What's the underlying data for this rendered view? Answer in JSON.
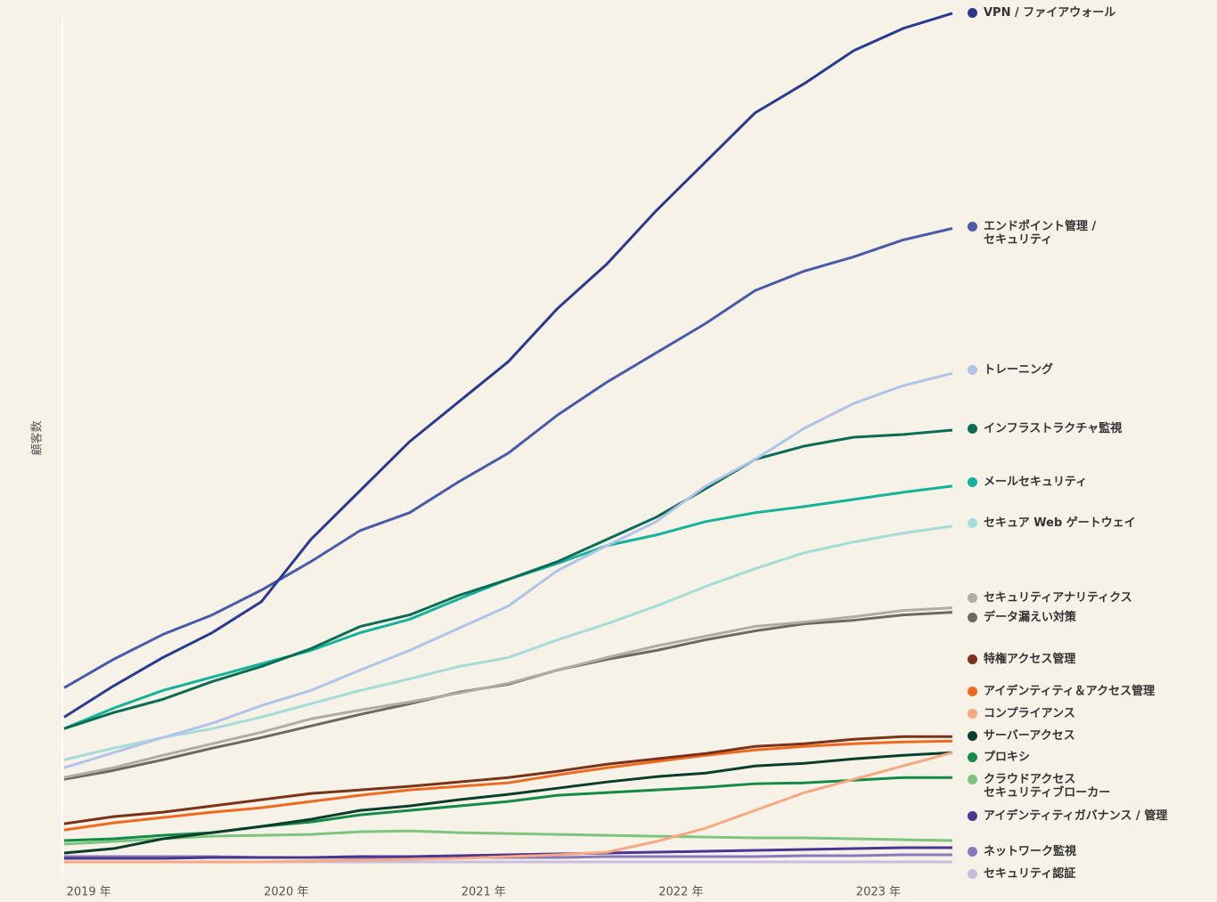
{
  "chart_data": {
    "type": "line",
    "ylabel": "顧客数",
    "x": [
      2018.875,
      2019.125,
      2019.375,
      2019.625,
      2019.875,
      2020.125,
      2020.375,
      2020.625,
      2020.875,
      2021.125,
      2021.375,
      2021.625,
      2021.875,
      2022.125,
      2022.375,
      2022.625,
      2022.875,
      2023.125,
      2023.375
    ],
    "xlim": [
      2018.875,
      2023.375
    ],
    "xticks": [
      {
        "value": 2019,
        "label": "2019 年"
      },
      {
        "value": 2020,
        "label": "2020 年"
      },
      {
        "value": 2021,
        "label": "2021 年"
      },
      {
        "value": 2022,
        "label": "2022 年"
      },
      {
        "value": 2023,
        "label": "2023 年"
      }
    ],
    "ylim": [
      0,
      960
    ],
    "series": [
      {
        "name": "VPN / ファイアウォール",
        "color": "#2b3a8f",
        "values": [
          165,
          200,
          232,
          260,
          295,
          365,
          420,
          475,
          520,
          565,
          625,
          675,
          735,
          790,
          845,
          878,
          915,
          940,
          957
        ]
      },
      {
        "name": "エンドポイント管理 /\nセキュリティ",
        "color": "#4a5aa8",
        "values": [
          198,
          230,
          258,
          280,
          308,
          340,
          375,
          395,
          430,
          462,
          505,
          542,
          575,
          608,
          645,
          667,
          683,
          702,
          715
        ]
      },
      {
        "name": "トレーニング",
        "color": "#b0c4e8",
        "values": [
          108,
          125,
          142,
          158,
          178,
          195,
          218,
          240,
          265,
          290,
          330,
          358,
          385,
          425,
          455,
          490,
          518,
          538,
          552
        ]
      },
      {
        "name": "インフラストラクチャ監視",
        "color": "#0b6b55",
        "values": [
          152,
          170,
          185,
          205,
          222,
          242,
          267,
          280,
          302,
          320,
          340,
          365,
          390,
          422,
          455,
          470,
          480,
          483,
          488
        ]
      },
      {
        "name": "メールセキュリティ",
        "color": "#14b39a",
        "values": [
          152,
          175,
          195,
          210,
          225,
          240,
          260,
          275,
          298,
          320,
          338,
          358,
          370,
          385,
          395,
          402,
          410,
          418,
          425
        ]
      },
      {
        "name": "セキュア Web ゲートウェイ",
        "color": "#a6dcd8",
        "values": [
          117,
          130,
          142,
          152,
          165,
          180,
          195,
          208,
          222,
          232,
          252,
          270,
          290,
          312,
          332,
          350,
          362,
          372,
          380
        ]
      },
      {
        "name": "セキュリティアナリティクス",
        "color": "#b0ada0",
        "values": [
          97,
          108,
          122,
          135,
          148,
          163,
          173,
          182,
          192,
          203,
          218,
          232,
          245,
          256,
          267,
          272,
          278,
          285,
          288
        ]
      },
      {
        "name": "データ漏えい対策",
        "color": "#6b6a60",
        "values": [
          95,
          105,
          117,
          130,
          142,
          155,
          168,
          180,
          193,
          202,
          218,
          230,
          240,
          252,
          262,
          270,
          274,
          280,
          283
        ]
      },
      {
        "name": "特権アクセス管理",
        "color": "#7a3218",
        "values": [
          45,
          53,
          58,
          65,
          72,
          79,
          83,
          87,
          92,
          97,
          104,
          112,
          118,
          124,
          132,
          135,
          140,
          143,
          143
        ]
      },
      {
        "name": "アイデンティティ＆アクセス管理",
        "color": "#ef6a1f",
        "values": [
          38,
          46,
          52,
          58,
          63,
          70,
          77,
          83,
          87,
          91,
          100,
          108,
          115,
          122,
          128,
          132,
          135,
          137,
          138
        ]
      },
      {
        "name": "コンプライアンス",
        "color": "#f5a882",
        "values": [
          2,
          2,
          2,
          2,
          2,
          3,
          4,
          5,
          6,
          8,
          10,
          13,
          25,
          40,
          60,
          80,
          95,
          110,
          125
        ]
      },
      {
        "name": "サーバーアクセス",
        "color": "#0a3d2c",
        "values": [
          12,
          17,
          28,
          35,
          42,
          50,
          60,
          65,
          72,
          78,
          85,
          92,
          98,
          102,
          110,
          113,
          118,
          122,
          125
        ]
      },
      {
        "name": "プロキシ",
        "color": "#138a45",
        "values": [
          26,
          28,
          32,
          35,
          42,
          47,
          55,
          60,
          65,
          70,
          77,
          80,
          83,
          86,
          90,
          91,
          94,
          97,
          97
        ]
      },
      {
        "name": "クラウドアクセス\nセキュリティブローカー",
        "color": "#7cc47f",
        "values": [
          22,
          25,
          28,
          31,
          32,
          33,
          36,
          37,
          35,
          34,
          33,
          32,
          31,
          30,
          29,
          29,
          28,
          27,
          26
        ]
      },
      {
        "name": "アイデンティティガバナンス / 管理",
        "color": "#4a3590",
        "values": [
          6,
          6,
          6,
          7,
          7,
          7,
          8,
          8,
          9,
          10,
          11,
          12,
          13,
          14,
          15,
          16,
          17,
          18,
          18
        ]
      },
      {
        "name": "ネットワーク監視",
        "color": "#8a78bc",
        "values": [
          8,
          8,
          8,
          8,
          7,
          7,
          7,
          7,
          7,
          7,
          7,
          8,
          8,
          8,
          8,
          9,
          9,
          10,
          10
        ]
      },
      {
        "name": "セキュリティ認証",
        "color": "#c8bde0",
        "values": [
          2,
          2,
          2,
          2,
          2,
          2,
          2,
          2,
          2,
          2,
          2,
          2,
          2,
          2,
          2,
          2,
          2,
          2,
          2
        ]
      }
    ]
  }
}
